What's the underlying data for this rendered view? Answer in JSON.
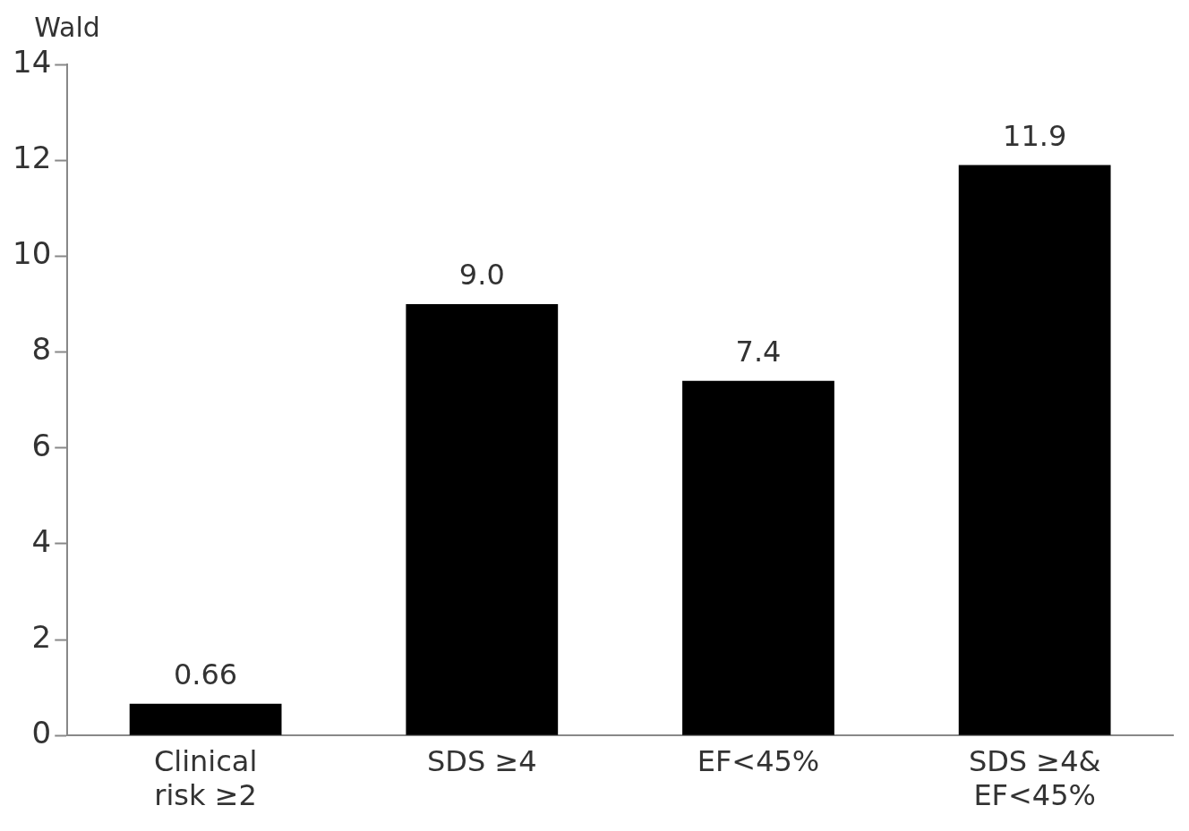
{
  "chart_data": {
    "type": "bar",
    "ylabel": "Wald",
    "categories": [
      "Clinical\nrisk ≥2",
      "SDS ≥4",
      "EF<45%",
      "SDS ≥4&\nEF<45%"
    ],
    "values": [
      0.66,
      9.0,
      7.4,
      11.9
    ],
    "value_labels": [
      "0.66",
      "9.0",
      "7.4",
      "11.9"
    ],
    "color": "#000000",
    "ylim": [
      0,
      14
    ],
    "yticks": [
      0,
      2,
      4,
      6,
      8,
      10,
      12,
      14
    ],
    "grid": false,
    "legend": false
  }
}
